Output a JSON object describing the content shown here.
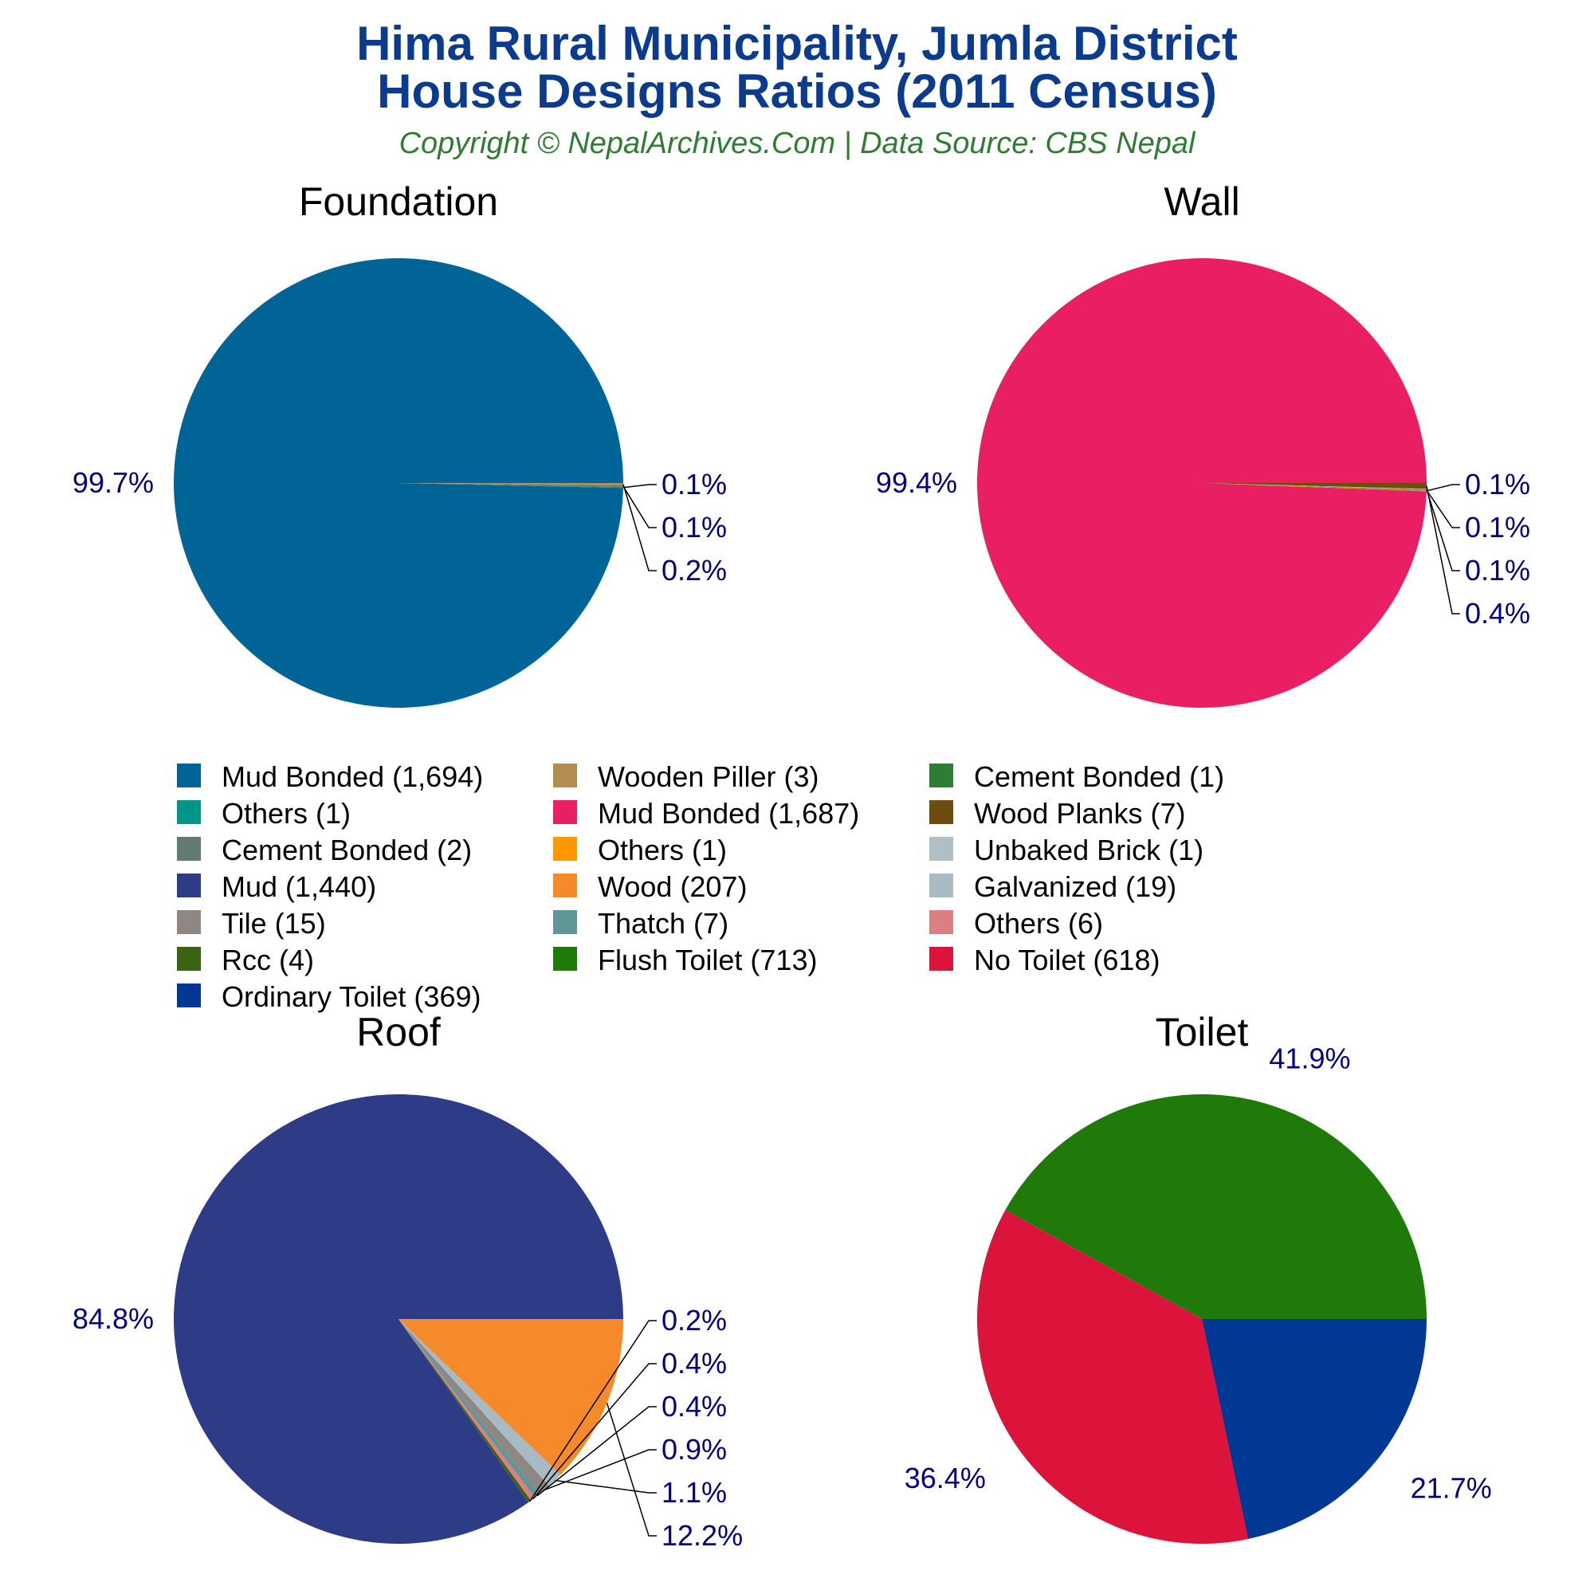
{
  "title_line1": "Hima Rural Municipality, Jumla District",
  "title_line2": "House Designs Ratios (2011 Census)",
  "subtitle": "Copyright © NepalArchives.Com | Data Source: CBS Nepal",
  "chart_data": [
    {
      "type": "pie",
      "title": "Foundation",
      "slices": [
        {
          "label": "Mud Bonded",
          "value": 1694,
          "color": "#006496",
          "pct": "99.7%"
        },
        {
          "label": "Others",
          "value": 1,
          "color": "#009688",
          "pct": "0.1%"
        },
        {
          "label": "Cement Bonded",
          "value": 2,
          "color": "#637a74",
          "pct": "0.1%"
        },
        {
          "label": "Wooden Piller",
          "value": 3,
          "color": "#b38e50",
          "pct": "0.2%"
        }
      ]
    },
    {
      "type": "pie",
      "title": "Wall",
      "slices": [
        {
          "label": "Mud Bonded",
          "value": 1687,
          "color": "#e91e63",
          "pct": "99.4%"
        },
        {
          "label": "Others",
          "value": 1,
          "color": "#ff9800",
          "pct": "0.1%"
        },
        {
          "label": "Cement Bonded",
          "value": 1,
          "color": "#2e7d32",
          "pct": "0.1%"
        },
        {
          "label": "Unbaked Brick",
          "value": 1,
          "color": "#b0bec5",
          "pct": "0.1%"
        },
        {
          "label": "Wood Planks",
          "value": 7,
          "color": "#6d4c0e",
          "pct": "0.4%"
        }
      ]
    },
    {
      "type": "pie",
      "title": "Roof",
      "slices": [
        {
          "label": "Mud",
          "value": 1440,
          "color": "#2e3b86",
          "pct": "84.8%"
        },
        {
          "label": "Rcc",
          "value": 4,
          "color": "#3b6314",
          "pct": "0.2%"
        },
        {
          "label": "Others",
          "value": 6,
          "color": "#db7f82",
          "pct": "0.4%"
        },
        {
          "label": "Thatch",
          "value": 7,
          "color": "#609696",
          "pct": "0.4%"
        },
        {
          "label": "Tile",
          "value": 15,
          "color": "#8e8784",
          "pct": "0.9%"
        },
        {
          "label": "Galvanized",
          "value": 19,
          "color": "#a8bac2",
          "pct": "1.1%"
        },
        {
          "label": "Wood",
          "value": 207,
          "color": "#f58a2a",
          "pct": "12.2%"
        }
      ]
    },
    {
      "type": "pie",
      "title": "Toilet",
      "slices": [
        {
          "label": "Flush Toilet",
          "value": 713,
          "color": "#1f7a0a",
          "pct": "41.9%"
        },
        {
          "label": "No Toilet",
          "value": 618,
          "color": "#dc143c",
          "pct": "36.4%"
        },
        {
          "label": "Ordinary Toilet",
          "value": 369,
          "color": "#003893",
          "pct": "21.7%"
        }
      ]
    }
  ],
  "legend": [
    {
      "label": "Mud Bonded (1,694)",
      "color": "#006496"
    },
    {
      "label": "Wooden Piller (3)",
      "color": "#b38e50"
    },
    {
      "label": "Cement Bonded (1)",
      "color": "#2e7d32"
    },
    {
      "label": "Others (1)",
      "color": "#009688"
    },
    {
      "label": "Mud Bonded (1,687)",
      "color": "#e91e63"
    },
    {
      "label": "Wood Planks (7)",
      "color": "#6d4c0e"
    },
    {
      "label": "Cement Bonded (2)",
      "color": "#637a74"
    },
    {
      "label": "Others (1)",
      "color": "#ff9800"
    },
    {
      "label": "Unbaked Brick (1)",
      "color": "#b0bec5"
    },
    {
      "label": "Mud (1,440)",
      "color": "#2e3b86"
    },
    {
      "label": "Wood (207)",
      "color": "#f58a2a"
    },
    {
      "label": "Galvanized (19)",
      "color": "#a8bac2"
    },
    {
      "label": "Tile (15)",
      "color": "#8e8784"
    },
    {
      "label": "Thatch (7)",
      "color": "#609696"
    },
    {
      "label": "Others (6)",
      "color": "#db7f82"
    },
    {
      "label": "Rcc (4)",
      "color": "#3b6314"
    },
    {
      "label": "Flush Toilet (713)",
      "color": "#1f7a0a"
    },
    {
      "label": "No Toilet (618)",
      "color": "#dc143c"
    },
    {
      "label": "Ordinary Toilet (369)",
      "color": "#003893"
    }
  ]
}
